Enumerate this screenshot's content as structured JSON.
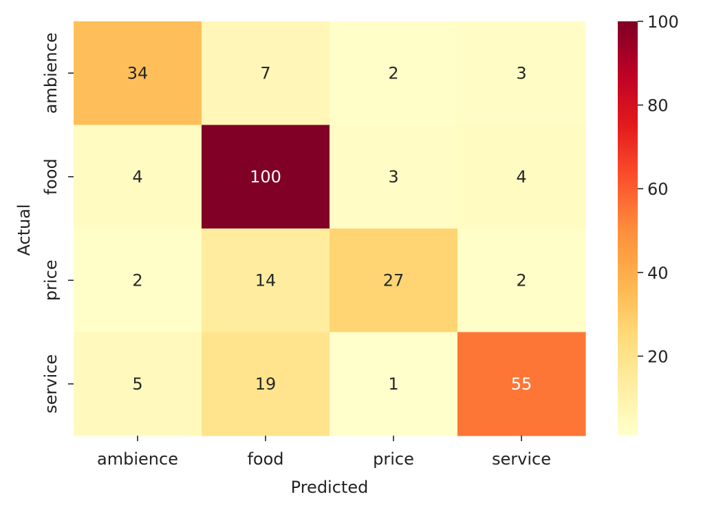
{
  "chart_data": {
    "type": "heatmap",
    "title": "",
    "xlabel": "Predicted",
    "ylabel": "Actual",
    "x_categories": [
      "ambience",
      "food",
      "price",
      "service"
    ],
    "y_categories": [
      "ambience",
      "food",
      "price",
      "service"
    ],
    "values": [
      [
        34,
        7,
        2,
        3
      ],
      [
        4,
        100,
        3,
        4
      ],
      [
        2,
        14,
        27,
        2
      ],
      [
        5,
        19,
        1,
        55
      ]
    ],
    "colormap": "YlOrRd",
    "colorbar": {
      "min": 1,
      "max": 100,
      "ticks": [
        "20",
        "40",
        "60",
        "80",
        "100"
      ]
    },
    "annotations": true,
    "grid": false
  }
}
